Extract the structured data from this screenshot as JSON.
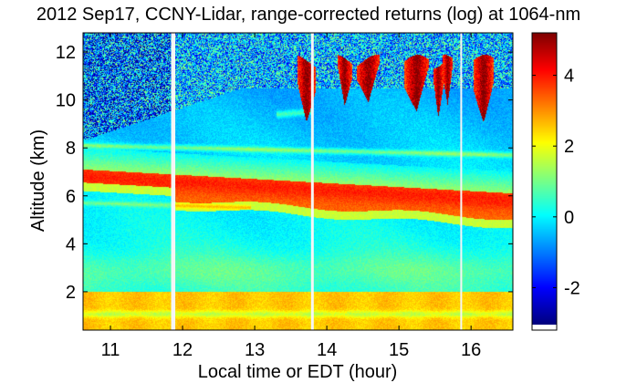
{
  "chart_data": {
    "type": "heatmap",
    "title": "2012 Sep17, CCNY-Lidar, range-corrected returns (log) at 1064-nm",
    "xlabel": "Local time or EDT (hour)",
    "ylabel": "Altitude (km)",
    "xlim": [
      10.62,
      16.58
    ],
    "ylim": [
      0.4,
      12.8
    ],
    "x_ticks": [
      11,
      12,
      13,
      14,
      15,
      16
    ],
    "x_tick_labels": [
      "11",
      "12",
      "13",
      "14",
      "15",
      "16"
    ],
    "y_ticks": [
      2,
      4,
      6,
      8,
      10,
      12
    ],
    "y_tick_labels": [
      "2",
      "4",
      "6",
      "8",
      "10",
      "12"
    ],
    "colorbar": {
      "ticks": [
        -2,
        0,
        2,
        4
      ],
      "tick_labels": [
        "-2",
        "0",
        "2",
        "4"
      ],
      "range": [
        -3.2,
        5.2
      ],
      "colormap": "jet"
    },
    "data_gaps_hour": [
      11.86,
      11.88,
      13.8,
      15.87
    ],
    "layers": [
      {
        "feature": "boundary layer aerosol",
        "altitude_km": [
          0.4,
          2.0
        ],
        "value": 2.9
      },
      {
        "feature": "elevated aerosol layer top",
        "time_hour": [
          10.62,
          16.58
        ],
        "altitude_km": [
          7.1,
          6.1
        ],
        "value": 3.8
      },
      {
        "feature": "thin aerosol layer",
        "time_hour": [
          10.62,
          16.58
        ],
        "altitude_km": [
          8.1,
          7.7
        ],
        "value": 1.0
      },
      {
        "feature": "thin aerosol layer",
        "time_hour": [
          10.62,
          12.9
        ],
        "altitude_km": [
          5.7,
          5.5
        ],
        "value": 0.8
      },
      {
        "feature": "cirrus clouds",
        "time_hour": [
          13.45,
          16.58
        ],
        "altitude_km": [
          9.3,
          11.8
        ],
        "value": 4.6
      }
    ]
  }
}
